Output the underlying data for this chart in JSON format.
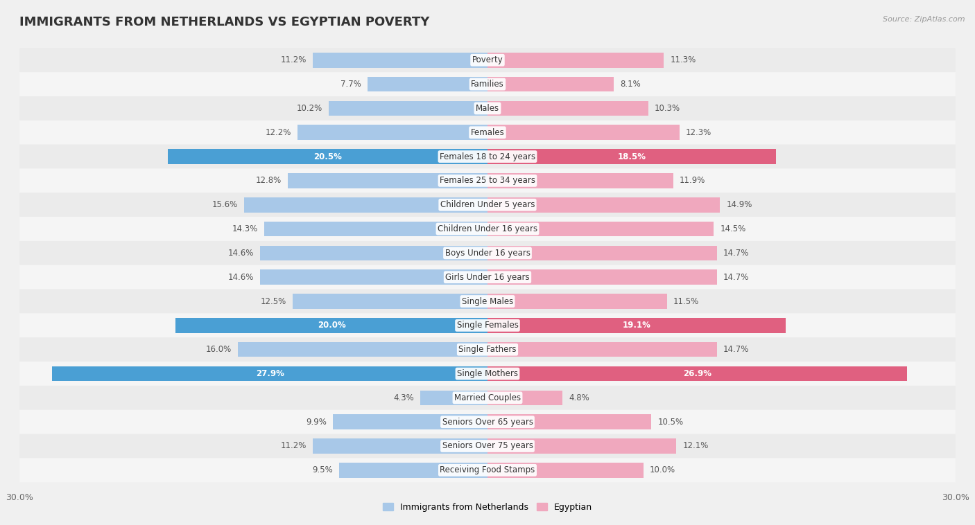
{
  "title": "IMMIGRANTS FROM NETHERLANDS VS EGYPTIAN POVERTY",
  "source": "Source: ZipAtlas.com",
  "categories": [
    "Poverty",
    "Families",
    "Males",
    "Females",
    "Females 18 to 24 years",
    "Females 25 to 34 years",
    "Children Under 5 years",
    "Children Under 16 years",
    "Boys Under 16 years",
    "Girls Under 16 years",
    "Single Males",
    "Single Females",
    "Single Fathers",
    "Single Mothers",
    "Married Couples",
    "Seniors Over 65 years",
    "Seniors Over 75 years",
    "Receiving Food Stamps"
  ],
  "left_values": [
    11.2,
    7.7,
    10.2,
    12.2,
    20.5,
    12.8,
    15.6,
    14.3,
    14.6,
    14.6,
    12.5,
    20.0,
    16.0,
    27.9,
    4.3,
    9.9,
    11.2,
    9.5
  ],
  "right_values": [
    11.3,
    8.1,
    10.3,
    12.3,
    18.5,
    11.9,
    14.9,
    14.5,
    14.7,
    14.7,
    11.5,
    19.1,
    14.7,
    26.9,
    4.8,
    10.5,
    12.1,
    10.0
  ],
  "left_color": "#a8c8e8",
  "right_color": "#f0a8be",
  "left_highlight_color": "#4a9fd4",
  "right_highlight_color": "#e06080",
  "highlight_rows": [
    4,
    11,
    13
  ],
  "max_value": 30.0,
  "row_bg_even": "#ebebeb",
  "row_bg_odd": "#f5f5f5",
  "background_color": "#f0f0f0",
  "title_fontsize": 13,
  "label_fontsize": 8.5,
  "value_fontsize": 8.5,
  "legend_label_left": "Immigrants from Netherlands",
  "legend_label_right": "Egyptian"
}
